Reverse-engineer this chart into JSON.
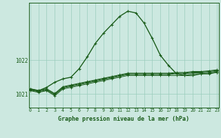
{
  "title": "Graphe pression niveau de la mer (hPa)",
  "background_color": "#cce8e0",
  "grid_color": "#99ccbb",
  "line_color": "#1a5c1a",
  "x_hours": [
    0,
    1,
    2,
    3,
    4,
    5,
    6,
    7,
    8,
    9,
    10,
    11,
    12,
    13,
    14,
    15,
    16,
    17,
    18,
    19,
    20,
    21,
    22,
    23
  ],
  "yticks": [
    1021,
    1022
  ],
  "ylim": [
    1020.6,
    1023.7
  ],
  "xlim": [
    -0.2,
    23.2
  ],
  "series": [
    [
      1021.15,
      1021.1,
      1021.2,
      1021.35,
      1021.45,
      1021.5,
      1021.75,
      1022.1,
      1022.5,
      1022.8,
      1023.05,
      1023.3,
      1023.45,
      1023.4,
      1023.1,
      1022.65,
      1022.15,
      1021.85,
      1021.6,
      1021.55,
      1021.55,
      1021.6,
      1021.6,
      1021.65
    ],
    [
      1021.1,
      1021.05,
      1021.1,
      1020.95,
      1021.15,
      1021.2,
      1021.25,
      1021.3,
      1021.35,
      1021.4,
      1021.45,
      1021.5,
      1021.55,
      1021.55,
      1021.55,
      1021.55,
      1021.55,
      1021.55,
      1021.55,
      1021.55,
      1021.6,
      1021.6,
      1021.62,
      1021.65
    ],
    [
      1021.12,
      1021.07,
      1021.12,
      1020.98,
      1021.18,
      1021.23,
      1021.28,
      1021.33,
      1021.38,
      1021.43,
      1021.48,
      1021.53,
      1021.58,
      1021.58,
      1021.58,
      1021.58,
      1021.58,
      1021.58,
      1021.6,
      1021.6,
      1021.63,
      1021.63,
      1021.65,
      1021.68
    ],
    [
      1021.14,
      1021.09,
      1021.14,
      1021.0,
      1021.2,
      1021.25,
      1021.3,
      1021.35,
      1021.4,
      1021.45,
      1021.5,
      1021.55,
      1021.6,
      1021.6,
      1021.6,
      1021.6,
      1021.6,
      1021.6,
      1021.62,
      1021.62,
      1021.65,
      1021.65,
      1021.67,
      1021.7
    ],
    [
      1021.16,
      1021.11,
      1021.16,
      1021.02,
      1021.22,
      1021.27,
      1021.32,
      1021.37,
      1021.42,
      1021.47,
      1021.52,
      1021.57,
      1021.62,
      1021.62,
      1021.62,
      1021.62,
      1021.62,
      1021.62,
      1021.64,
      1021.64,
      1021.67,
      1021.67,
      1021.69,
      1021.72
    ]
  ]
}
